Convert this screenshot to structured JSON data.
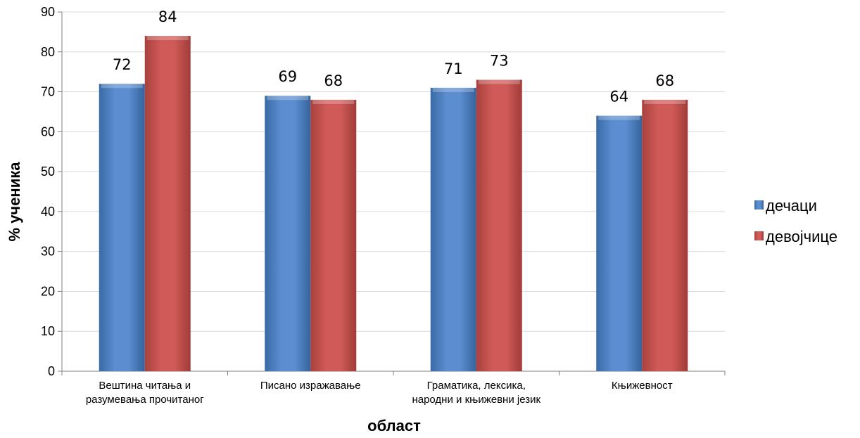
{
  "chart_data": {
    "type": "bar",
    "categories": [
      [
        "Вештина читања и",
        "разумевања прочитаног"
      ],
      [
        "Писано изражавање"
      ],
      [
        "Граматика, лексика,",
        "народни и књижевни језик"
      ],
      [
        "Књижевност"
      ]
    ],
    "series": [
      {
        "name": "дечаци",
        "values": [
          72,
          69,
          71,
          64
        ],
        "color": "#4f81bd"
      },
      {
        "name": "девојчице",
        "values": [
          84,
          68,
          73,
          68
        ],
        "color": "#c0504d"
      }
    ],
    "ylabel": "% ученика",
    "xlabel": "област",
    "ylim": [
      0,
      90
    ],
    "yticks": [
      0,
      10,
      20,
      30,
      40,
      50,
      60,
      70,
      80,
      90
    ],
    "grid": true,
    "legend": "right"
  }
}
